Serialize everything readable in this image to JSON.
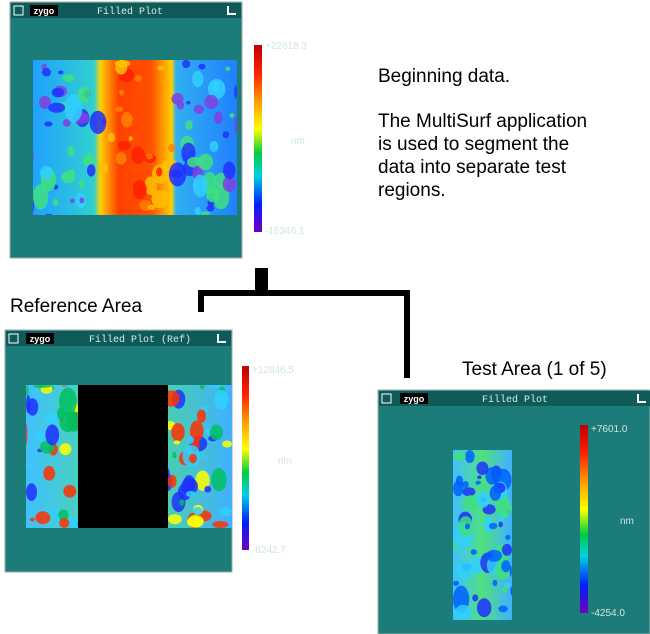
{
  "windows": [
    {
      "title": "Filled Plot",
      "logo": "zygo",
      "colorbar": {
        "max_label": "+22618.3",
        "unit": "nm",
        "min_label": "-16346.1"
      }
    },
    {
      "title": "Filled Plot (Ref)",
      "logo": "zygo",
      "colorbar": {
        "max_label": "+12846.5",
        "unit": "nm",
        "min_label": "-8242.7"
      }
    },
    {
      "title": "Filled Plot",
      "logo": "zygo",
      "colorbar": {
        "max_label": "+7601.0",
        "unit": "nm",
        "min_label": "-4254.0"
      }
    }
  ],
  "description": {
    "heading": "Beginning data.",
    "lines": [
      "The MultiSurf application",
      "is used to segment the",
      "data into separate test",
      "regions."
    ]
  },
  "labels": {
    "reference": "Reference Area",
    "test": "Test Area (1 of 5)"
  }
}
